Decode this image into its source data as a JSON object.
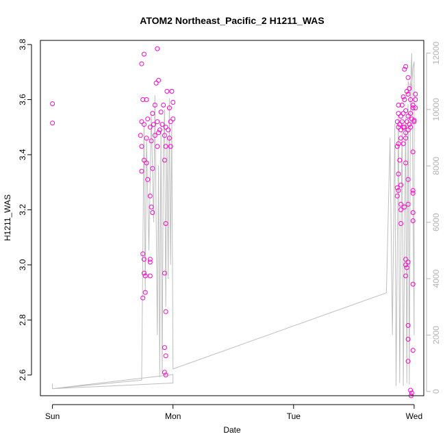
{
  "chart_data": {
    "type": "scatter",
    "title": "ATOM2 Northeast_Pacific_2 H1211_WAS",
    "xlabel": "Date",
    "ylabel": "H1211_WAS",
    "x_ticks": [
      "Sun",
      "Mon",
      "Tue",
      "Wed"
    ],
    "xlim_days": [
      -0.1,
      3.08
    ],
    "ylim": [
      2.525,
      3.815
    ],
    "y_ticks": [
      "2.6",
      "2.8",
      "3.0",
      "3.2",
      "3.4",
      "3.6",
      "3.8"
    ],
    "y2lim": [
      -150,
      12450
    ],
    "y2_ticks": [
      "0",
      "2000",
      "4000",
      "6000",
      "8000",
      "10000",
      "12000"
    ],
    "grid": false,
    "legend": "none",
    "colors": {
      "points": "#ff00cc",
      "altitude_line": "#bebebe",
      "right_axis": "#b3b3b3"
    },
    "series": [
      {
        "kind": "points",
        "points": [
          [
            0.0,
            3.585
          ],
          [
            0.0,
            3.515
          ],
          [
            0.74,
            3.73
          ],
          [
            0.76,
            3.765
          ],
          [
            0.87,
            3.785
          ],
          [
            0.75,
            3.6
          ],
          [
            0.78,
            3.6
          ],
          [
            0.86,
            3.66
          ],
          [
            0.88,
            3.67
          ],
          [
            0.95,
            3.63
          ],
          [
            0.99,
            3.63
          ],
          [
            0.85,
            3.58
          ],
          [
            0.92,
            3.58
          ],
          [
            0.97,
            3.57
          ],
          [
            1.0,
            3.59
          ],
          [
            0.83,
            3.55
          ],
          [
            0.9,
            3.555
          ],
          [
            0.74,
            3.52
          ],
          [
            0.76,
            3.51
          ],
          [
            0.79,
            3.53
          ],
          [
            0.81,
            3.5
          ],
          [
            0.84,
            3.51
          ],
          [
            0.87,
            3.52
          ],
          [
            0.89,
            3.49
          ],
          [
            0.91,
            3.51
          ],
          [
            0.94,
            3.5
          ],
          [
            0.96,
            3.49
          ],
          [
            0.98,
            3.52
          ],
          [
            1.0,
            3.53
          ],
          [
            0.73,
            3.47
          ],
          [
            0.78,
            3.46
          ],
          [
            0.82,
            3.45
          ],
          [
            0.85,
            3.47
          ],
          [
            0.88,
            3.48
          ],
          [
            0.93,
            3.47
          ],
          [
            0.97,
            3.46
          ],
          [
            0.74,
            3.43
          ],
          [
            0.87,
            3.43
          ],
          [
            0.94,
            3.43
          ],
          [
            0.98,
            3.43
          ],
          [
            0.76,
            3.38
          ],
          [
            0.78,
            3.37
          ],
          [
            0.74,
            3.34
          ],
          [
            0.83,
            3.35
          ],
          [
            0.93,
            3.38
          ],
          [
            0.79,
            3.31
          ],
          [
            0.81,
            3.25
          ],
          [
            0.82,
            3.21
          ],
          [
            0.83,
            3.19
          ],
          [
            0.94,
            3.15
          ],
          [
            0.75,
            3.04
          ],
          [
            0.76,
            3.02
          ],
          [
            0.81,
            3.02
          ],
          [
            0.81,
            3.01
          ],
          [
            0.76,
            2.97
          ],
          [
            0.77,
            2.96
          ],
          [
            0.81,
            2.96
          ],
          [
            0.93,
            2.97
          ],
          [
            0.77,
            2.9
          ],
          [
            0.75,
            2.88
          ],
          [
            0.94,
            2.83
          ],
          [
            0.93,
            2.7
          ],
          [
            0.94,
            2.67
          ],
          [
            0.93,
            2.61
          ],
          [
            0.94,
            2.6
          ],
          [
            2.87,
            3.58
          ],
          [
            2.9,
            3.58
          ],
          [
            2.92,
            3.6
          ],
          [
            2.95,
            3.62
          ],
          [
            2.97,
            3.6
          ],
          [
            2.99,
            3.58
          ],
          [
            2.87,
            3.55
          ],
          [
            2.89,
            3.54
          ],
          [
            2.91,
            3.55
          ],
          [
            2.93,
            3.56
          ],
          [
            2.95,
            3.54
          ],
          [
            2.97,
            3.55
          ],
          [
            2.99,
            3.57
          ],
          [
            2.86,
            3.52
          ],
          [
            2.88,
            3.51
          ],
          [
            2.9,
            3.52
          ],
          [
            2.92,
            3.5
          ],
          [
            2.94,
            3.52
          ],
          [
            2.96,
            3.51
          ],
          [
            2.98,
            3.53
          ],
          [
            3.0,
            3.52
          ],
          [
            2.87,
            3.5
          ],
          [
            2.89,
            3.49
          ],
          [
            2.91,
            3.5
          ],
          [
            2.93,
            3.48
          ],
          [
            2.95,
            3.49
          ],
          [
            2.97,
            3.5
          ],
          [
            3.0,
            3.525
          ],
          [
            2.92,
            3.71
          ],
          [
            2.93,
            3.72
          ],
          [
            2.95,
            3.68
          ],
          [
            2.94,
            3.63
          ],
          [
            2.96,
            3.64
          ],
          [
            3.01,
            3.62
          ],
          [
            2.91,
            3.61
          ],
          [
            3.01,
            3.6
          ],
          [
            3.01,
            3.57
          ],
          [
            2.89,
            3.46
          ],
          [
            2.91,
            3.44
          ],
          [
            2.93,
            3.46
          ],
          [
            2.86,
            3.43
          ],
          [
            2.87,
            3.44
          ],
          [
            2.99,
            3.41
          ],
          [
            2.88,
            3.38
          ],
          [
            2.93,
            3.37
          ],
          [
            2.87,
            3.33
          ],
          [
            2.95,
            3.31
          ],
          [
            2.89,
            3.29
          ],
          [
            2.86,
            3.28
          ],
          [
            2.87,
            3.27
          ],
          [
            2.86,
            3.25
          ],
          [
            2.99,
            3.27
          ],
          [
            2.99,
            3.26
          ],
          [
            2.89,
            3.22
          ],
          [
            2.92,
            3.21
          ],
          [
            2.95,
            3.22
          ],
          [
            2.89,
            3.2
          ],
          [
            2.99,
            3.19
          ],
          [
            2.99,
            3.16
          ],
          [
            2.89,
            3.15
          ],
          [
            2.93,
            3.02
          ],
          [
            2.95,
            3.01
          ],
          [
            2.93,
            3.0
          ],
          [
            2.94,
            2.99
          ],
          [
            2.93,
            2.96
          ],
          [
            2.99,
            2.93
          ],
          [
            2.95,
            2.78
          ],
          [
            2.95,
            2.73
          ],
          [
            2.99,
            2.69
          ],
          [
            2.95,
            2.65
          ],
          [
            2.97,
            2.545
          ],
          [
            2.98,
            2.535
          ],
          [
            2.975,
            2.525
          ]
        ]
      },
      {
        "kind": "line",
        "right_axis": true,
        "points": [
          [
            0.0,
            280
          ],
          [
            0.0,
            100
          ],
          [
            1.0,
            600
          ],
          [
            1.0,
            300
          ],
          [
            0.0,
            100
          ],
          [
            0.74,
            400
          ],
          [
            0.76,
            9500
          ],
          [
            0.77,
            3500
          ],
          [
            0.78,
            9000
          ],
          [
            0.8,
            5000
          ],
          [
            0.82,
            9800
          ],
          [
            0.84,
            6000
          ],
          [
            0.85,
            10500
          ],
          [
            0.87,
            2000
          ],
          [
            0.88,
            8000
          ],
          [
            0.89,
            500
          ],
          [
            0.9,
            9500
          ],
          [
            0.91,
            600
          ],
          [
            0.92,
            8500
          ],
          [
            0.93,
            10000
          ],
          [
            0.94,
            3000
          ],
          [
            0.95,
            9000
          ],
          [
            0.96,
            4000
          ],
          [
            0.97,
            10400
          ],
          [
            0.98,
            4500
          ],
          [
            0.99,
            9500
          ],
          [
            1.0,
            800
          ],
          [
            2.77,
            3500
          ],
          [
            2.8,
            9000
          ],
          [
            2.82,
            2000
          ],
          [
            2.84,
            9500
          ],
          [
            2.85,
            200
          ],
          [
            2.87,
            9800
          ],
          [
            2.88,
            300
          ],
          [
            2.9,
            9600
          ],
          [
            2.91,
            200
          ],
          [
            2.93,
            9700
          ],
          [
            2.94,
            300
          ],
          [
            2.95,
            10200
          ],
          [
            2.96,
            250
          ],
          [
            2.97,
            11000
          ],
          [
            2.98,
            10800
          ],
          [
            2.99,
            11500
          ],
          [
            3.0,
            11700
          ],
          [
            3.0,
            2000
          ],
          [
            2.98,
            12000
          ],
          [
            2.97,
            10700
          ],
          [
            2.95,
            11000
          ],
          [
            2.95,
            10500
          ]
        ]
      }
    ]
  }
}
